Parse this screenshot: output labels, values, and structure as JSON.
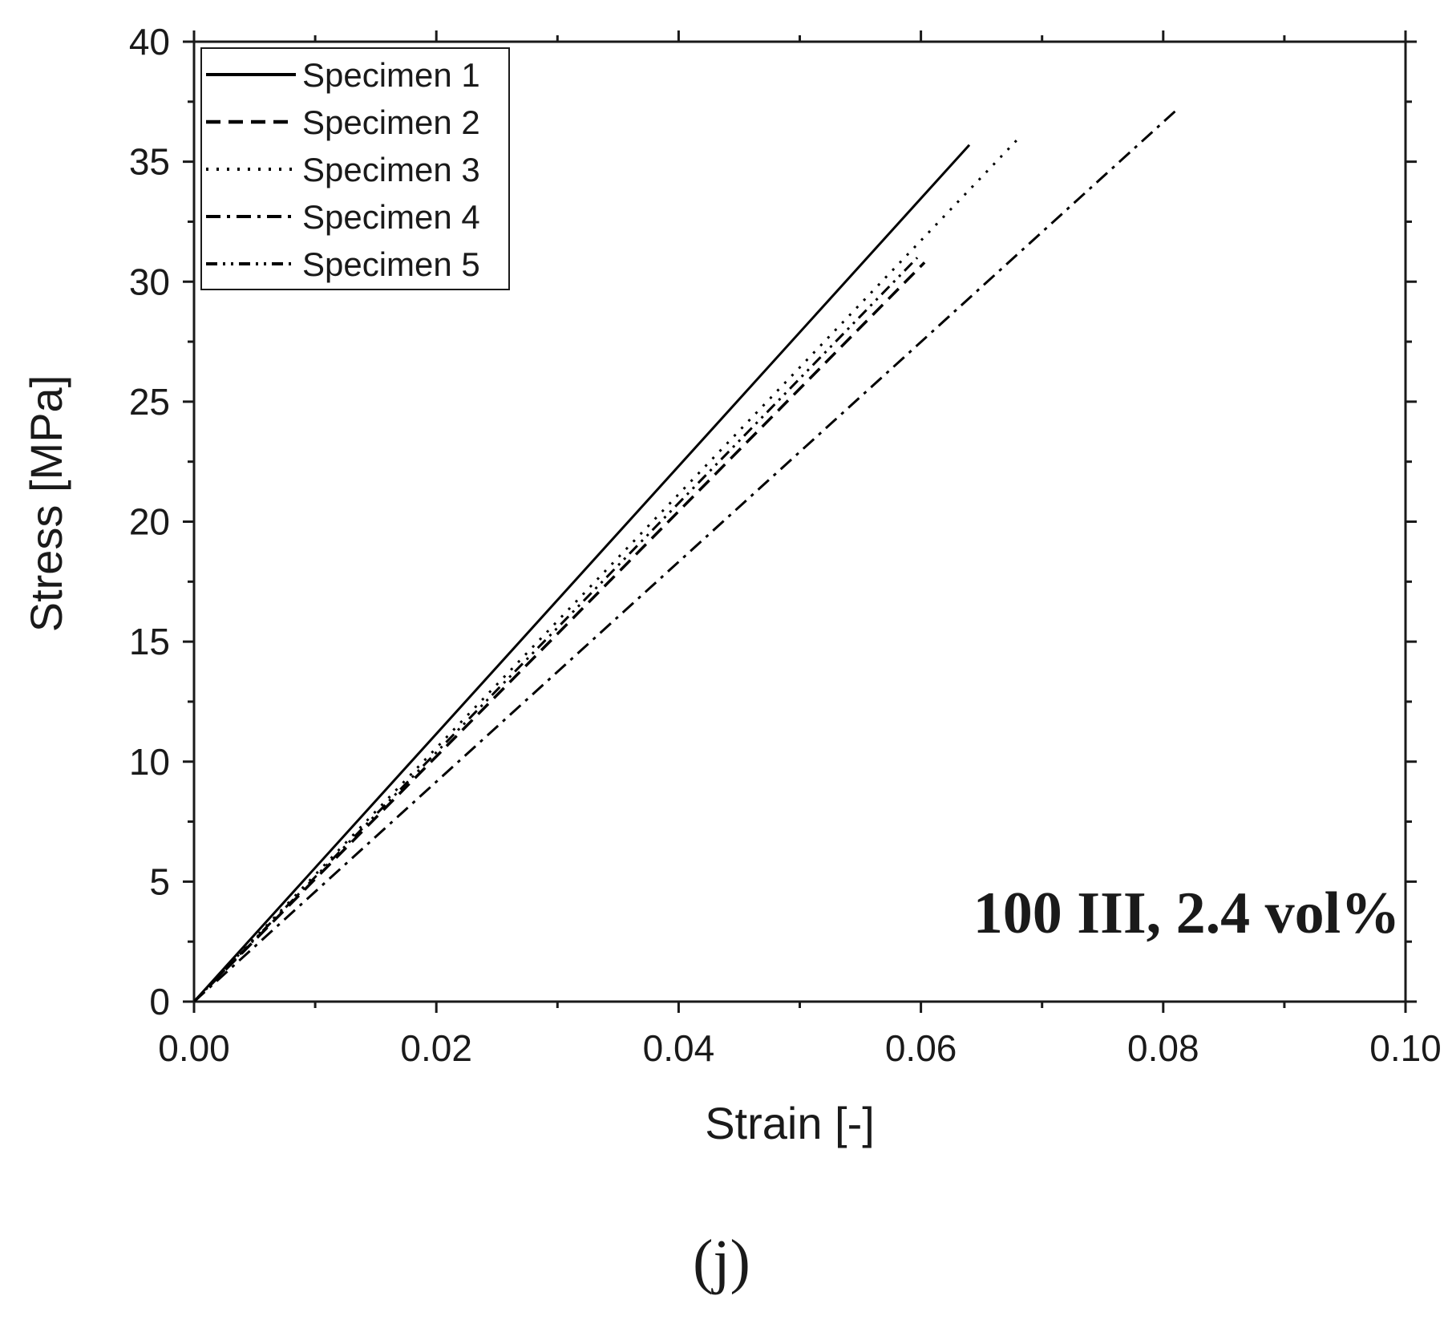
{
  "chart_data": {
    "type": "line",
    "xlabel": "Strain [-]",
    "ylabel": "Stress [MPa]",
    "xlim": [
      0.0,
      0.1
    ],
    "ylim": [
      0,
      40
    ],
    "x_ticks": [
      "0.00",
      "0.02",
      "0.04",
      "0.06",
      "0.08",
      "0.10"
    ],
    "y_ticks": [
      "0",
      "5",
      "10",
      "15",
      "20",
      "25",
      "30",
      "35",
      "40"
    ],
    "grid": false,
    "legend_position": "top-left",
    "annotation": "100 III, 2.4 vol%",
    "panel_label": "(j)",
    "series": [
      {
        "name": "Specimen 1",
        "style": "solid",
        "x": [
          0.0,
          0.064
        ],
        "y": [
          0,
          35.7
        ]
      },
      {
        "name": "Specimen 2",
        "style": "dash",
        "x": [
          0.0,
          0.0603
        ],
        "y": [
          0,
          30.8
        ]
      },
      {
        "name": "Specimen 3",
        "style": "dot",
        "x": [
          0.0,
          0.0683
        ],
        "y": [
          0,
          36.1
        ]
      },
      {
        "name": "Specimen 4",
        "style": "dash-dot",
        "x": [
          0.0,
          0.0812
        ],
        "y": [
          0,
          37.2
        ]
      },
      {
        "name": "Specimen 5",
        "style": "dash-dot-dot",
        "x": [
          0.0,
          0.0597
        ],
        "y": [
          0,
          31.0
        ]
      }
    ]
  },
  "colors": {
    "line": "#000000",
    "axis": "#1a1a1a",
    "background": "#ffffff"
  }
}
